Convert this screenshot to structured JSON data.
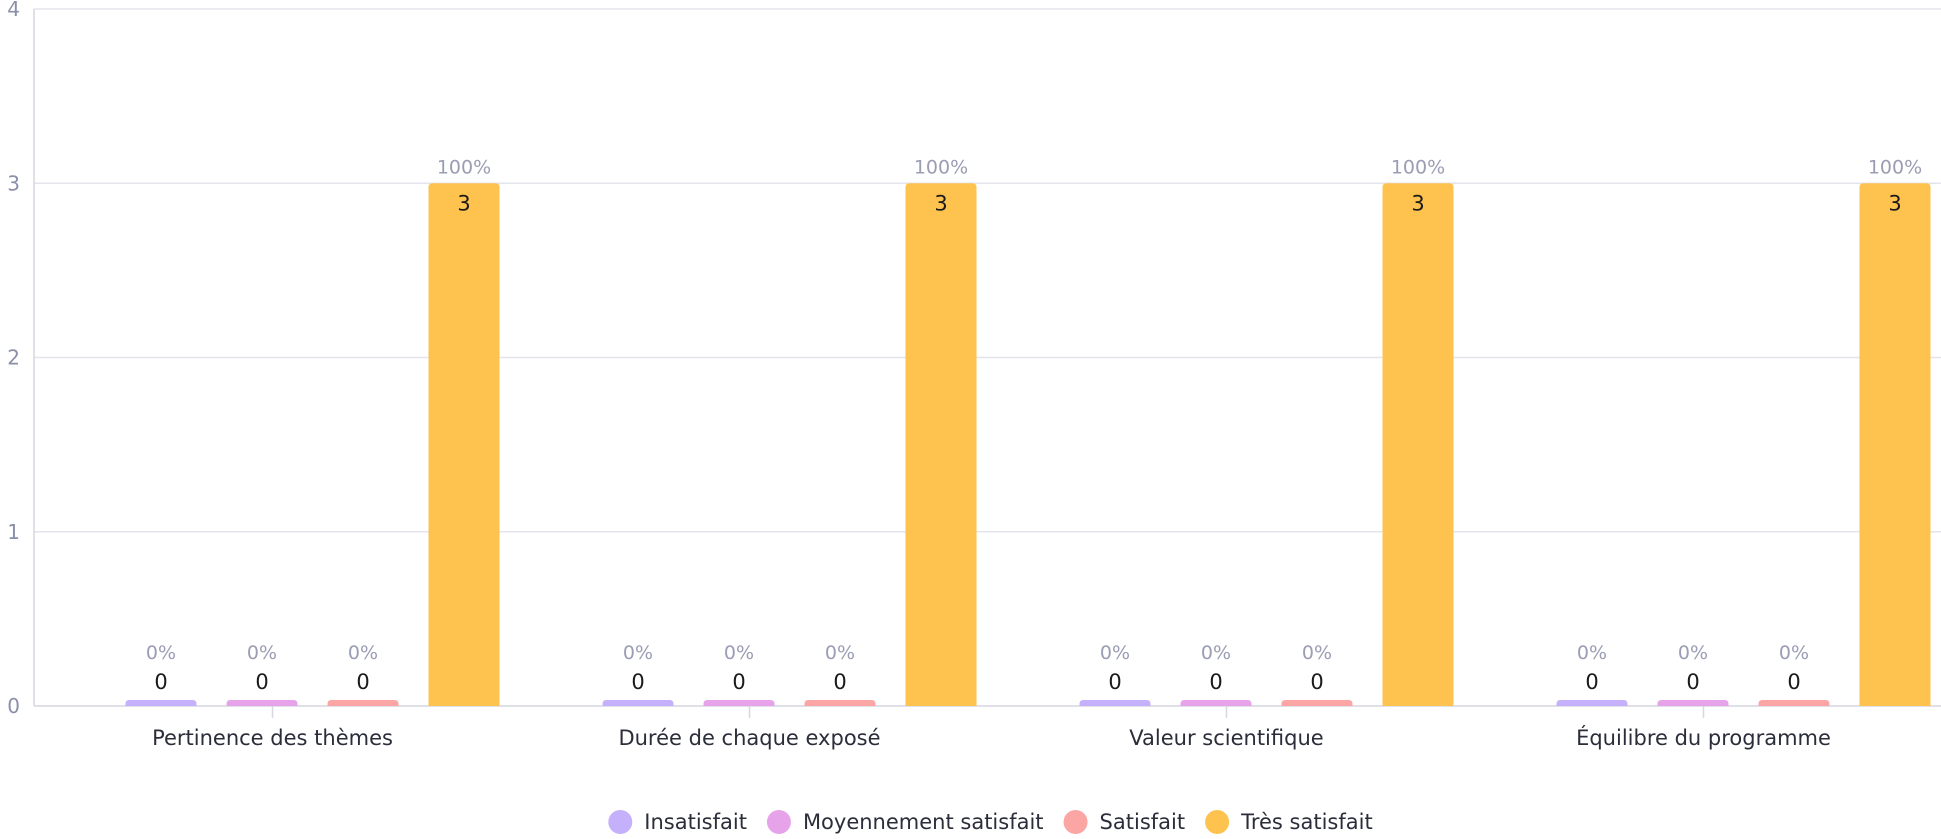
{
  "chart_data": {
    "type": "bar",
    "categories": [
      "Pertinence des thèmes",
      "Durée de chaque exposé",
      "Valeur scientifique",
      "Équilibre du programme"
    ],
    "series": [
      {
        "name": "Insatisfait",
        "color": "#c4b0fb",
        "values": [
          0,
          0,
          0,
          0
        ],
        "percent_labels": [
          "0%",
          "0%",
          "0%",
          "0%"
        ]
      },
      {
        "name": "Moyennement satisfait",
        "color": "#e6a3ea",
        "values": [
          0,
          0,
          0,
          0
        ],
        "percent_labels": [
          "0%",
          "0%",
          "0%",
          "0%"
        ]
      },
      {
        "name": "Satisfait",
        "color": "#fca5a5",
        "values": [
          0,
          0,
          0,
          0
        ],
        "percent_labels": [
          "0%",
          "0%",
          "0%",
          "0%"
        ]
      },
      {
        "name": "Très satisfait",
        "color": "#fec24f",
        "values": [
          3,
          3,
          3,
          3
        ],
        "percent_labels": [
          "100%",
          "100%",
          "100%",
          "100%"
        ]
      }
    ],
    "ylim": [
      0,
      4
    ],
    "yticks": [
      "0",
      "1",
      "2",
      "3",
      "4"
    ],
    "grid": true,
    "legend": "bottom-center"
  }
}
